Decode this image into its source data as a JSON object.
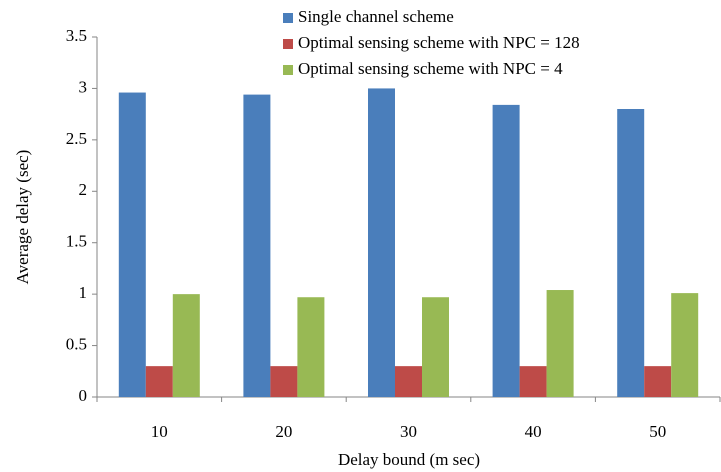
{
  "chart_data": {
    "type": "bar",
    "x_label": "Delay bound (m sec)",
    "y_label": "Average delay (sec)",
    "categories": [
      "10",
      "20",
      "30",
      "40",
      "50"
    ],
    "series": [
      {
        "name": "Single channel scheme",
        "color": "#4a7ebb",
        "values": [
          2.96,
          2.94,
          3.0,
          2.84,
          2.8
        ]
      },
      {
        "name": "Optimal sensing scheme with NPC = 128",
        "color": "#be4b48",
        "values": [
          0.3,
          0.3,
          0.3,
          0.3,
          0.3
        ]
      },
      {
        "name": "Optimal sensing scheme with NPC = 4",
        "color": "#98b954",
        "values": [
          1.0,
          0.97,
          0.97,
          1.04,
          1.01
        ]
      }
    ],
    "ylim": [
      0,
      3.5
    ],
    "yticks": [
      0,
      0.5,
      1,
      1.5,
      2,
      2.5,
      3,
      3.5
    ],
    "grid": false,
    "legend": "top-right"
  }
}
